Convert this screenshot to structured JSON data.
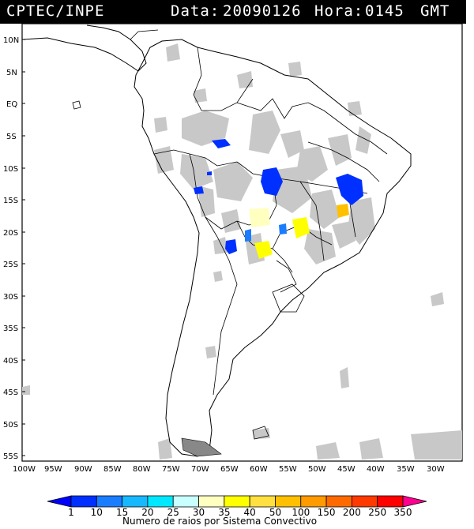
{
  "header": {
    "org": "CPTEC/INPE",
    "date_label": "Data:",
    "date_value": "20090126",
    "time_label": "Hora:",
    "time_value": "0145",
    "time_zone": "GMT"
  },
  "map": {
    "lat_ticks": [
      "10N",
      "5N",
      "EQ",
      "5S",
      "10S",
      "15S",
      "20S",
      "25S",
      "30S",
      "35S",
      "40S",
      "45S",
      "50S",
      "55S"
    ],
    "lon_ticks": [
      "100W",
      "95W",
      "90W",
      "85W",
      "80W",
      "75W",
      "70W",
      "65W",
      "60W",
      "55W",
      "50W",
      "45W",
      "40W",
      "35W",
      "30W"
    ],
    "lat_range_deg": [
      -56.5,
      13
    ],
    "lon_range_deg": [
      -100,
      -27
    ]
  },
  "colorbar": {
    "values": [
      "1",
      "10",
      "15",
      "20",
      "25",
      "30",
      "35",
      "40",
      "50",
      "100",
      "150",
      "200",
      "250",
      "350"
    ],
    "colors": [
      "#0000ff",
      "#0030ff",
      "#1a7dff",
      "#18b8ff",
      "#00e8ff",
      "#c8ffff",
      "#ffffc0",
      "#ffff00",
      "#ffe040",
      "#ffc000",
      "#ff9a00",
      "#ff6a00",
      "#ff3a00",
      "#ff0000",
      "#ff0090"
    ],
    "title": "Numero de raios por Sistema Convectivo"
  },
  "colors": {
    "cloud_gray": "#c8c8c8",
    "header_bg": "#000000",
    "header_text": "#ffffff"
  }
}
